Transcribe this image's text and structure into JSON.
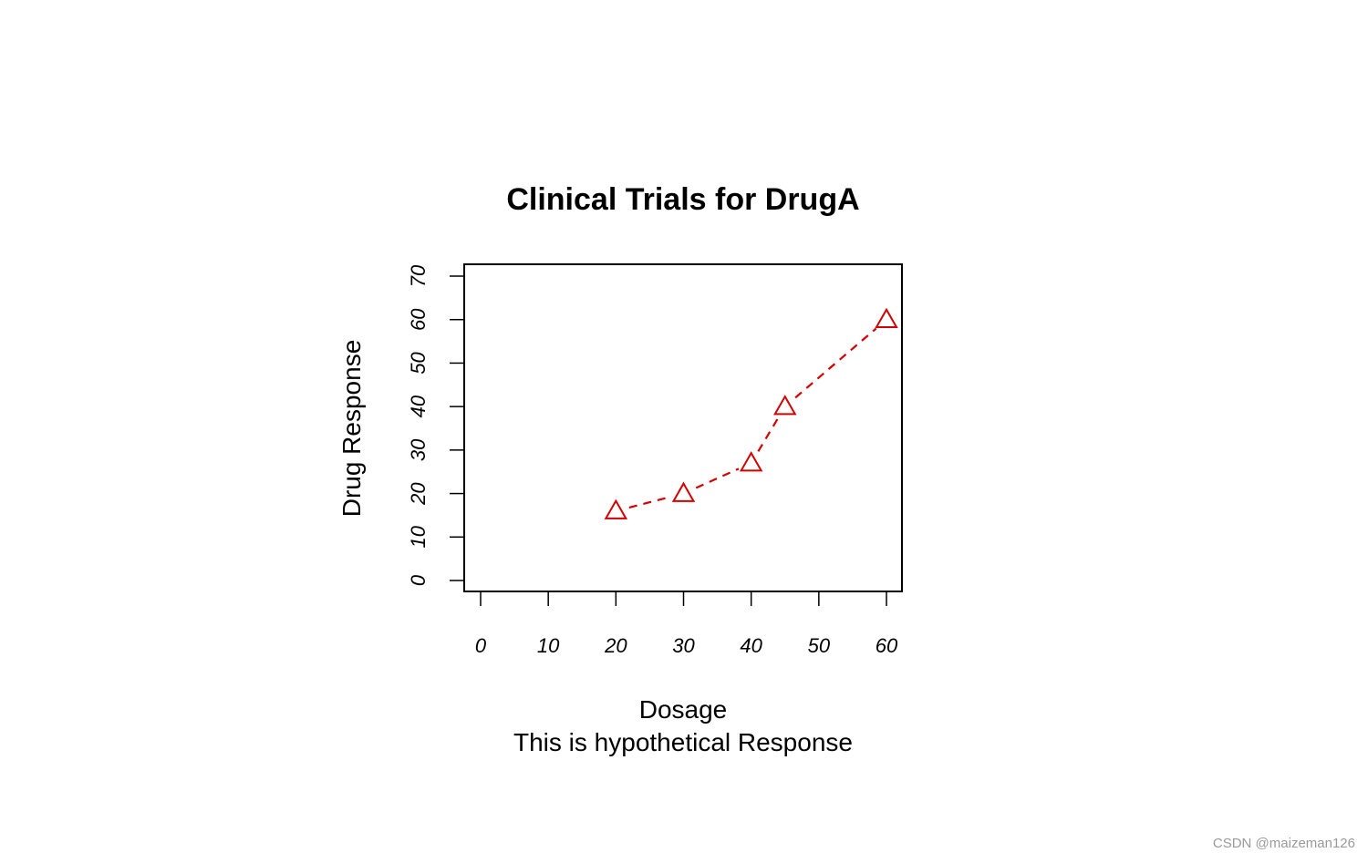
{
  "chart_data": {
    "type": "line",
    "title": "Clinical Trials for DrugA",
    "xlabel": "Dosage",
    "ylabel": "Drug Response",
    "subtitle": "This is hypothetical Response",
    "x_ticks": [
      "0",
      "10",
      "20",
      "30",
      "40",
      "50",
      "60"
    ],
    "y_ticks": [
      "0",
      "10",
      "20",
      "30",
      "40",
      "50",
      "60",
      "70"
    ],
    "xlim": [
      0,
      60
    ],
    "ylim": [
      0,
      70
    ],
    "series": [
      {
        "x": [
          20,
          30,
          40,
          45,
          60
        ],
        "y": [
          16,
          20,
          27,
          40,
          60
        ]
      }
    ],
    "marker": "triangle-open",
    "line_style": "dashed",
    "color": "#d40000",
    "grid": false
  },
  "watermark": "CSDN @maizeman126"
}
